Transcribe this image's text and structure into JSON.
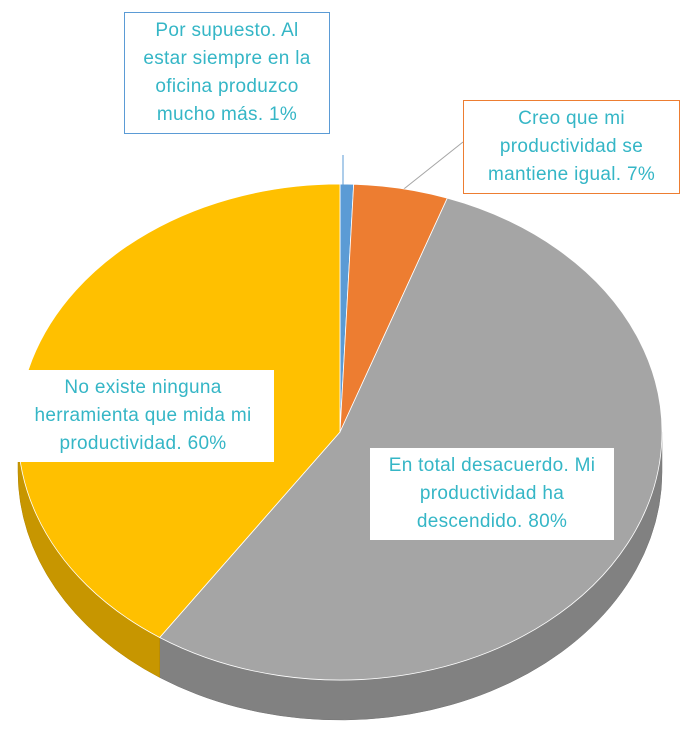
{
  "chart_data": {
    "type": "pie3d",
    "categories": [
      "Por supuesto. Al estar siempre en la oficina produzco mucho más.",
      "Creo que mi productividad se mantiene igual.",
      "En total desacuerdo. Mi productividad ha descendido.",
      "No existe ninguna herramienta que mida mi productividad."
    ],
    "values": [
      1,
      7,
      80,
      60
    ],
    "value_labels": [
      "1%",
      "7%",
      "80%",
      "60%"
    ],
    "colors": [
      "#5b9bd5",
      "#ed7d31",
      "#a5a5a5",
      "#ffc000"
    ]
  }
}
